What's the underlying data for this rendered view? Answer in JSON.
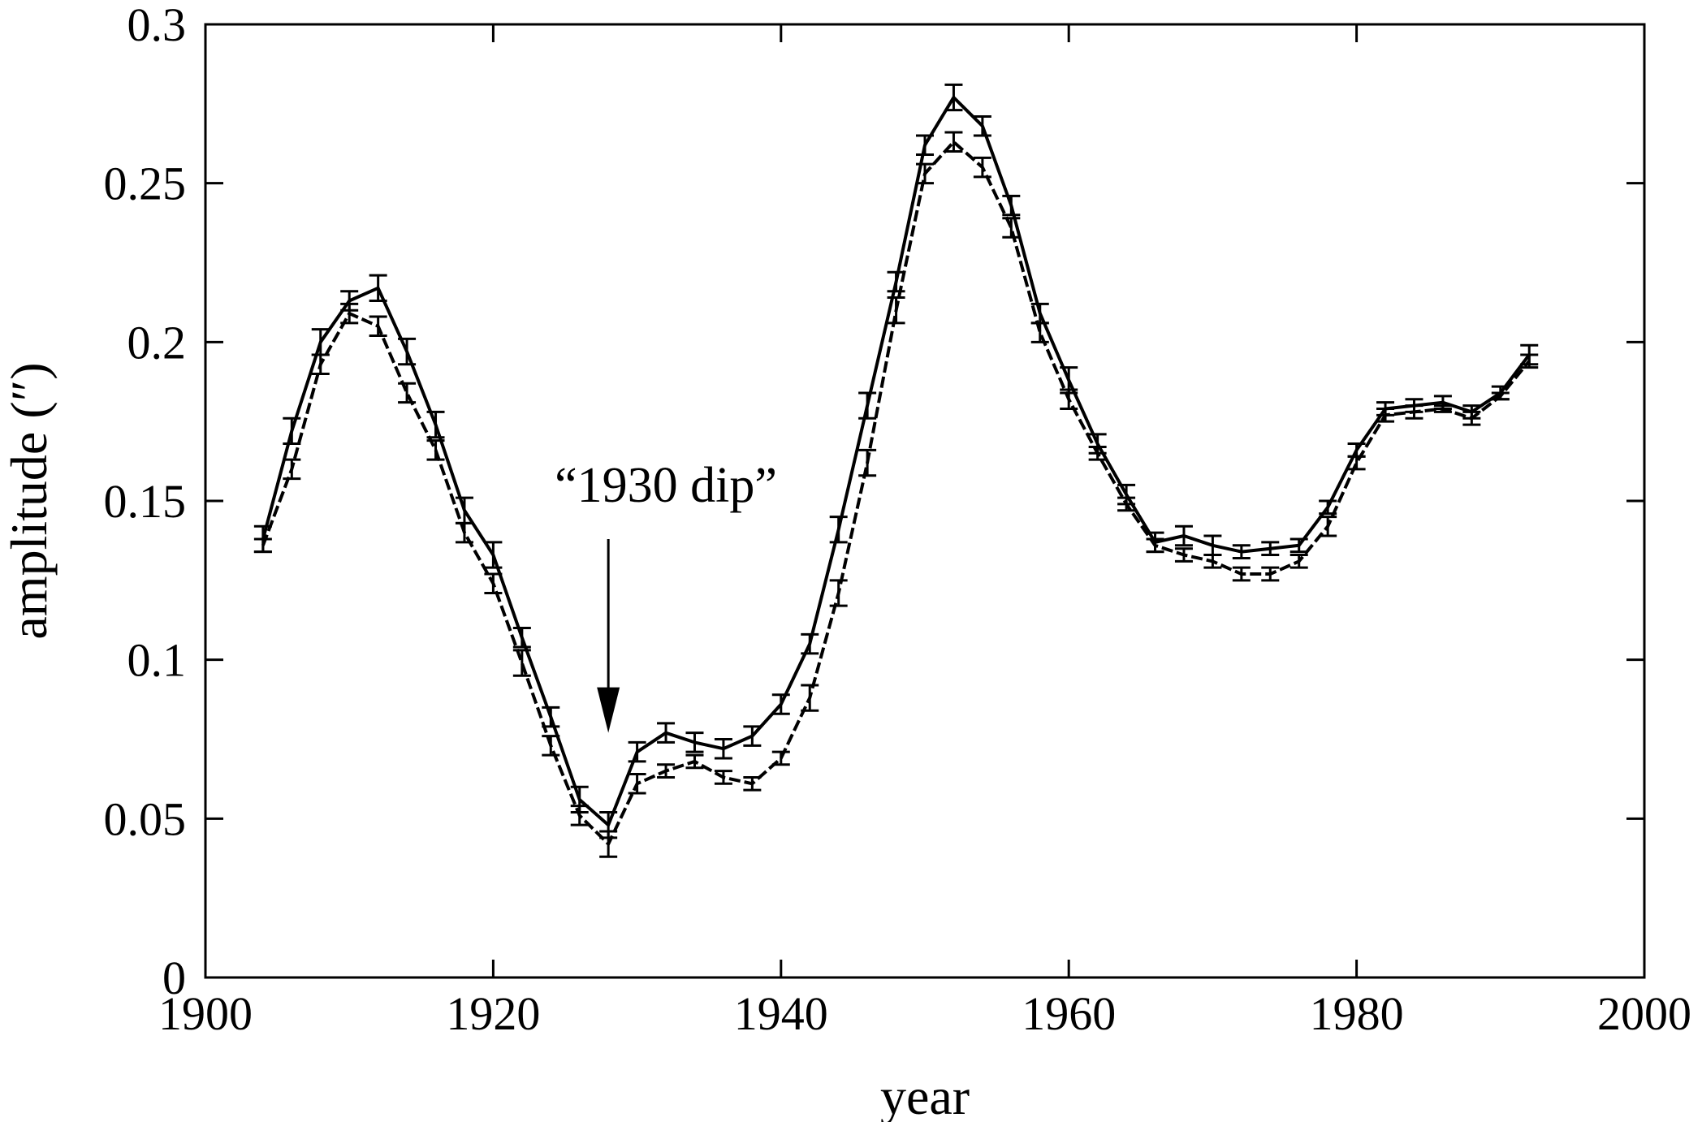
{
  "chart_data": {
    "type": "line",
    "title": "",
    "xlabel": "year",
    "ylabel": "amplitude (″)",
    "xlim": [
      1900,
      2000
    ],
    "ylim": [
      0,
      0.3
    ],
    "xticks": [
      1900,
      1920,
      1940,
      1960,
      1980,
      2000
    ],
    "xtick_labels": [
      "1900",
      "1920",
      "1940",
      "1960",
      "1980",
      "2000"
    ],
    "yticks": [
      0,
      0.05,
      0.1,
      0.15,
      0.2,
      0.25,
      0.3
    ],
    "ytick_labels": [
      "0",
      "0.05",
      "0.1",
      "0.15",
      "0.2",
      "0.25",
      "0.3"
    ],
    "grid": false,
    "legend": "none",
    "colors": {
      "line": "#000000",
      "frame": "#000000",
      "background": "#ffffff"
    },
    "x": [
      1904,
      1906,
      1908,
      1910,
      1912,
      1914,
      1916,
      1918,
      1920,
      1922,
      1924,
      1926,
      1928,
      1930,
      1932,
      1934,
      1936,
      1938,
      1940,
      1942,
      1944,
      1946,
      1948,
      1950,
      1952,
      1954,
      1956,
      1958,
      1960,
      1962,
      1964,
      1966,
      1968,
      1970,
      1972,
      1974,
      1976,
      1978,
      1980,
      1982,
      1984,
      1986,
      1988,
      1990,
      1992
    ],
    "series": [
      {
        "style": "solid",
        "values": [
          0.138,
          0.172,
          0.2,
          0.213,
          0.217,
          0.197,
          0.174,
          0.147,
          0.133,
          0.107,
          0.082,
          0.056,
          0.048,
          0.071,
          0.077,
          0.074,
          0.072,
          0.076,
          0.086,
          0.105,
          0.141,
          0.18,
          0.219,
          0.262,
          0.277,
          0.268,
          0.243,
          0.209,
          0.188,
          0.168,
          0.152,
          0.137,
          0.139,
          0.136,
          0.134,
          0.135,
          0.136,
          0.148,
          0.166,
          0.179,
          0.18,
          0.181,
          0.178,
          0.184,
          0.196
        ],
        "errors": [
          0.004,
          0.004,
          0.004,
          0.003,
          0.004,
          0.004,
          0.004,
          0.004,
          0.004,
          0.003,
          0.003,
          0.004,
          0.004,
          0.003,
          0.003,
          0.003,
          0.003,
          0.003,
          0.003,
          0.003,
          0.004,
          0.004,
          0.003,
          0.003,
          0.004,
          0.003,
          0.003,
          0.003,
          0.004,
          0.003,
          0.003,
          0.003,
          0.003,
          0.003,
          0.002,
          0.002,
          0.002,
          0.002,
          0.002,
          0.002,
          0.002,
          0.002,
          0.002,
          0.002,
          0.003
        ]
      },
      {
        "style": "dashed",
        "values": [
          0.136,
          0.16,
          0.193,
          0.209,
          0.205,
          0.184,
          0.166,
          0.14,
          0.124,
          0.099,
          0.073,
          0.051,
          0.042,
          0.061,
          0.065,
          0.068,
          0.063,
          0.061,
          0.069,
          0.088,
          0.121,
          0.162,
          0.21,
          0.253,
          0.263,
          0.255,
          0.236,
          0.203,
          0.182,
          0.165,
          0.149,
          0.136,
          0.133,
          0.131,
          0.127,
          0.127,
          0.131,
          0.142,
          0.162,
          0.177,
          0.178,
          0.179,
          0.176,
          0.183,
          0.194
        ],
        "errors": [
          0.002,
          0.003,
          0.003,
          0.003,
          0.003,
          0.003,
          0.003,
          0.003,
          0.003,
          0.004,
          0.003,
          0.003,
          0.004,
          0.003,
          0.002,
          0.002,
          0.002,
          0.002,
          0.002,
          0.004,
          0.004,
          0.004,
          0.004,
          0.003,
          0.003,
          0.003,
          0.003,
          0.003,
          0.003,
          0.002,
          0.002,
          0.002,
          0.002,
          0.002,
          0.002,
          0.002,
          0.002,
          0.003,
          0.002,
          0.002,
          0.002,
          0.001,
          0.002,
          0.001,
          0.002
        ]
      }
    ],
    "annotations": [
      {
        "text": "“1930 dip”",
        "x": 1928,
        "y_arrow_start": 0.138,
        "y_arrow_end": 0.077
      }
    ]
  }
}
